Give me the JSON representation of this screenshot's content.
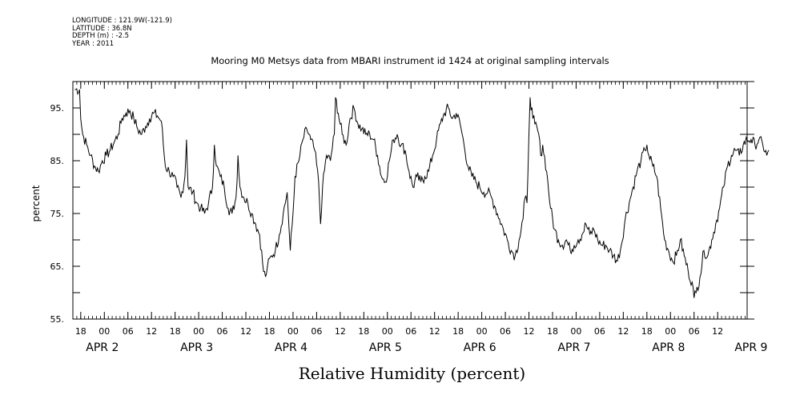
{
  "meta_lines": [
    "LONGITUDE : 121.9W(-121.9)",
    "LATITUDE : 36.8N",
    "DEPTH (m) : -2.5",
    "YEAR : 2011"
  ],
  "chart_data": {
    "type": "line",
    "title": "Mooring M0 Metsys data from MBARI instrument id 1424 at original sampling intervals",
    "xlabel": "Relative Humidity (percent)",
    "ylabel": "percent",
    "ylim": [
      55,
      100
    ],
    "xlim": [
      -8.0,
      163.5
    ],
    "x_unit": "hours since 00:00 APR 2",
    "yticks": [
      95,
      85,
      75,
      65,
      55
    ],
    "ytick_labels": [
      "95.",
      "85.",
      "75.",
      "65.",
      "55."
    ],
    "xticks": [
      -6,
      0,
      6,
      12,
      18,
      24,
      30,
      36,
      42,
      48,
      54,
      60,
      66,
      72,
      78,
      84,
      90,
      96,
      102,
      108,
      114,
      120,
      126,
      132,
      138,
      144,
      150,
      156
    ],
    "xtick_labels": [
      "18",
      "00",
      "06",
      "12",
      "18",
      "00",
      "06",
      "12",
      "18",
      "00",
      "06",
      "12",
      "18",
      "00",
      "06",
      "12",
      "18",
      "00",
      "06",
      "12",
      "18",
      "00",
      "06",
      "12",
      "18",
      "00",
      "06",
      "12"
    ],
    "date_labels": [
      {
        "x": -0.5,
        "text": "APR 2"
      },
      {
        "x": 23.5,
        "text": "APR 3"
      },
      {
        "x": 47.5,
        "text": "APR 4"
      },
      {
        "x": 71.5,
        "text": "APR 5"
      },
      {
        "x": 95.5,
        "text": "APR 6"
      },
      {
        "x": 119.5,
        "text": "APR 7"
      },
      {
        "x": 143.5,
        "text": "APR 8"
      },
      {
        "x": 164.5,
        "text": "APR 9"
      }
    ],
    "grid": false,
    "series": [
      {
        "points": [
          [
            -7.5,
            98.5
          ],
          [
            -6.3,
            98.5
          ],
          [
            -6.0,
            93
          ],
          [
            -5.5,
            90
          ],
          [
            -4.5,
            88
          ],
          [
            -3.5,
            86
          ],
          [
            -2.5,
            84
          ],
          [
            -1.5,
            83
          ],
          [
            -0.5,
            85
          ],
          [
            0.5,
            86
          ],
          [
            1.5,
            87
          ],
          [
            2.5,
            88.5
          ],
          [
            3.5,
            90
          ],
          [
            4.5,
            93
          ],
          [
            5.5,
            94
          ],
          [
            6.5,
            94.5
          ],
          [
            7.5,
            93
          ],
          [
            8.5,
            91
          ],
          [
            9.5,
            90
          ],
          [
            10.5,
            91.5
          ],
          [
            11.5,
            93
          ],
          [
            12.5,
            94
          ],
          [
            13.5,
            93.5
          ],
          [
            14.5,
            92.5
          ],
          [
            15.5,
            84
          ],
          [
            16.5,
            83
          ],
          [
            17.5,
            82
          ],
          [
            18.5,
            80
          ],
          [
            19.5,
            78
          ],
          [
            20.5,
            82
          ],
          [
            20.9,
            89
          ],
          [
            21.3,
            80
          ],
          [
            22.5,
            79
          ],
          [
            23.5,
            77
          ],
          [
            24.5,
            76
          ],
          [
            25.5,
            75
          ],
          [
            26.5,
            77
          ],
          [
            27.5,
            80
          ],
          [
            28.0,
            88
          ],
          [
            28.5,
            84
          ],
          [
            29.5,
            82
          ],
          [
            30.5,
            80
          ],
          [
            31.5,
            76
          ],
          [
            32.5,
            75
          ],
          [
            33.5,
            78
          ],
          [
            34.0,
            86
          ],
          [
            34.5,
            80
          ],
          [
            35.5,
            78
          ],
          [
            36.5,
            77
          ],
          [
            37.5,
            75
          ],
          [
            38.5,
            73
          ],
          [
            39.5,
            71
          ],
          [
            40.5,
            64
          ],
          [
            41.0,
            63
          ],
          [
            41.5,
            65
          ],
          [
            42.5,
            67
          ],
          [
            43.5,
            68
          ],
          [
            44.5,
            71
          ],
          [
            45.5,
            75
          ],
          [
            46.5,
            79
          ],
          [
            47.0,
            72
          ],
          [
            47.3,
            68
          ],
          [
            48.0,
            75
          ],
          [
            48.5,
            82
          ],
          [
            49.5,
            85
          ],
          [
            50.5,
            89
          ],
          [
            51.5,
            91
          ],
          [
            52.5,
            89
          ],
          [
            53.5,
            87
          ],
          [
            54.5,
            81
          ],
          [
            55.0,
            73
          ],
          [
            55.5,
            80
          ],
          [
            56.5,
            86
          ],
          [
            57.5,
            85
          ],
          [
            58.5,
            90
          ],
          [
            58.8,
            97
          ],
          [
            59.5,
            94
          ],
          [
            60.5,
            90
          ],
          [
            61.5,
            88
          ],
          [
            62.5,
            93
          ],
          [
            63.5,
            95
          ],
          [
            64.5,
            92
          ],
          [
            65.5,
            91
          ],
          [
            66.5,
            90
          ],
          [
            67.5,
            90
          ],
          [
            68.5,
            89
          ],
          [
            69.5,
            86
          ],
          [
            70.5,
            82
          ],
          [
            71.5,
            81
          ],
          [
            72.5,
            85
          ],
          [
            73.5,
            89
          ],
          [
            74.5,
            90
          ],
          [
            75.5,
            88
          ],
          [
            76.5,
            87
          ],
          [
            77.5,
            83
          ],
          [
            78.5,
            80
          ],
          [
            79.5,
            82
          ],
          [
            80.5,
            81
          ],
          [
            81.5,
            82
          ],
          [
            82.5,
            83
          ],
          [
            83.5,
            86
          ],
          [
            84.5,
            89
          ],
          [
            85.5,
            92
          ],
          [
            86.5,
            94
          ],
          [
            87.5,
            95
          ],
          [
            88.5,
            93
          ],
          [
            89.5,
            94
          ],
          [
            90.5,
            92
          ],
          [
            91.5,
            88
          ],
          [
            92.5,
            84
          ],
          [
            93.5,
            82
          ],
          [
            94.5,
            81
          ],
          [
            95.5,
            80
          ],
          [
            96.5,
            79
          ],
          [
            97.5,
            79
          ],
          [
            98.5,
            78
          ],
          [
            99.5,
            76
          ],
          [
            100.5,
            74
          ],
          [
            101.5,
            72
          ],
          [
            102.5,
            70
          ],
          [
            103.5,
            68
          ],
          [
            104.5,
            67
          ],
          [
            105.5,
            70
          ],
          [
            106.5,
            74
          ],
          [
            107.0,
            78
          ],
          [
            107.5,
            77
          ],
          [
            108.0,
            90
          ],
          [
            108.3,
            97
          ],
          [
            109.0,
            93
          ],
          [
            109.5,
            92
          ],
          [
            110.5,
            90
          ],
          [
            111.0,
            86
          ],
          [
            111.5,
            88
          ],
          [
            112.5,
            83
          ],
          [
            113.5,
            76
          ],
          [
            114.5,
            72
          ],
          [
            115.5,
            70
          ],
          [
            116.5,
            69
          ],
          [
            117.5,
            70
          ],
          [
            118.5,
            68
          ],
          [
            119.5,
            69
          ],
          [
            120.5,
            70
          ],
          [
            121.5,
            71
          ],
          [
            122.5,
            73
          ],
          [
            123.5,
            71
          ],
          [
            124.5,
            72
          ],
          [
            125.5,
            70
          ],
          [
            126.5,
            69
          ],
          [
            127.5,
            69
          ],
          [
            128.5,
            68
          ],
          [
            129.5,
            67
          ],
          [
            130.5,
            66
          ],
          [
            131.5,
            69
          ],
          [
            132.5,
            74
          ],
          [
            133.5,
            77
          ],
          [
            134.5,
            80
          ],
          [
            135.5,
            83
          ],
          [
            136.5,
            85
          ],
          [
            137.5,
            87
          ],
          [
            138.0,
            88
          ],
          [
            138.5,
            86
          ],
          [
            139.5,
            84
          ],
          [
            140.5,
            82
          ],
          [
            141.5,
            76
          ],
          [
            142.5,
            70
          ],
          [
            143.5,
            68
          ],
          [
            144.5,
            66
          ],
          [
            145.5,
            67
          ],
          [
            146.5,
            70
          ],
          [
            147.5,
            67
          ],
          [
            148.5,
            64
          ],
          [
            149.5,
            62
          ],
          [
            150.0,
            59
          ],
          [
            150.5,
            60
          ],
          [
            151.5,
            63
          ],
          [
            152.5,
            68
          ],
          [
            153.5,
            67
          ],
          [
            154.5,
            70
          ],
          [
            155.5,
            73
          ],
          [
            156.5,
            76
          ],
          [
            157.5,
            80
          ],
          [
            158.5,
            84
          ],
          [
            159.5,
            86
          ],
          [
            160.5,
            87
          ],
          [
            161.5,
            86
          ],
          [
            162.5,
            88
          ],
          [
            163.5,
            89
          ],
          [
            164.5,
            89
          ],
          [
            165.5,
            88
          ],
          [
            166.5,
            89
          ],
          [
            167.5,
            88
          ],
          [
            168.5,
            86
          ],
          [
            169.0,
            87
          ]
        ]
      }
    ]
  }
}
